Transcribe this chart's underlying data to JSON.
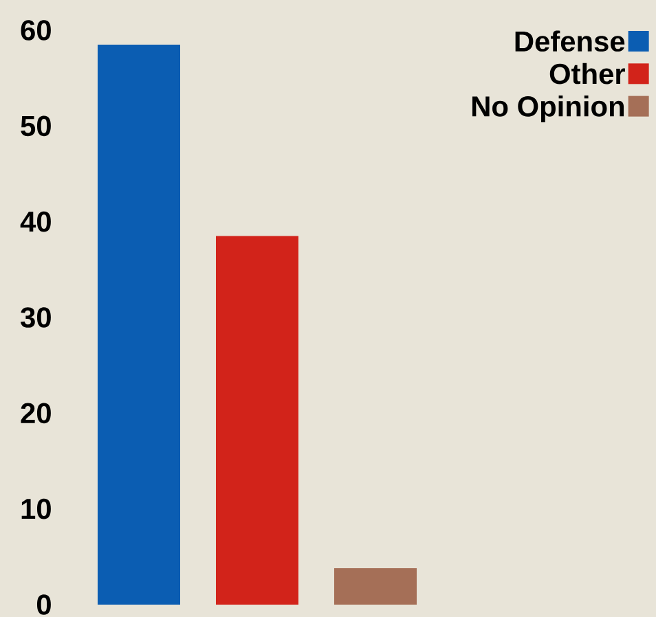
{
  "chart_data": {
    "type": "bar",
    "categories": [
      null
    ],
    "series": [
      {
        "name": "Defense",
        "color": "#0b5db2",
        "values": [
          58.5
        ]
      },
      {
        "name": "Other",
        "color": "#d2231a",
        "values": [
          38.5
        ]
      },
      {
        "name": "No Opinion",
        "color": "#a56f57",
        "values": [
          3.8
        ]
      }
    ],
    "ylim": [
      0,
      60
    ],
    "yticks": [
      0,
      10,
      20,
      30,
      40,
      50,
      60
    ],
    "legend": "top right",
    "tick_labels": "y"
  }
}
